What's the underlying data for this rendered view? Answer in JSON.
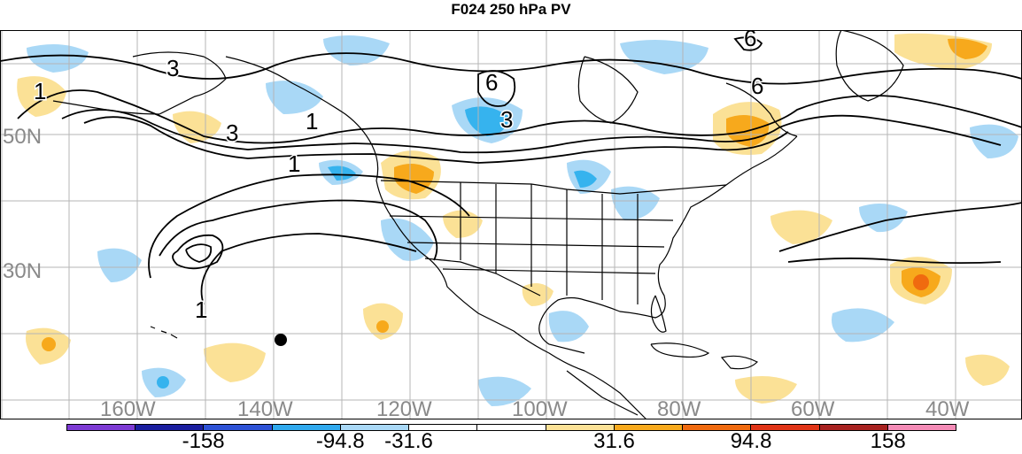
{
  "title": "F024 250 hPa PV",
  "colors": {
    "ocean": "#ffffff",
    "grid": "#b5b5b5",
    "coast": "#000000",
    "contour": "#000000",
    "positive_light": "#fbe196",
    "positive_mid": "#f7a91c",
    "positive_strong": "#f06a0f",
    "negative_light": "#a9d8f6",
    "negative_mid": "#36b3ee",
    "station_marker": "#000000"
  },
  "map": {
    "latitude_labels": [
      "50N",
      "30N"
    ],
    "longitude_labels": [
      "160W",
      "140W",
      "120W",
      "100W",
      "80W",
      "60W",
      "40W"
    ],
    "contour_labels": [
      "1",
      "3",
      "6",
      "1",
      "3",
      "6",
      "3",
      "1",
      "1",
      "6"
    ]
  },
  "colorbar": {
    "colors": [
      "#7d3bd4",
      "#1a1e9f",
      "#2d52d6",
      "#2fa9ee",
      "#a9d8f6",
      "#ffffff",
      "#ffffff",
      "#fbe196",
      "#f7a91c",
      "#f06a0f",
      "#e03416",
      "#a82220",
      "#f48bb6"
    ],
    "labels": [
      "-158",
      "-94.8",
      "-31.6",
      "31.6",
      "94.8",
      "158"
    ]
  }
}
